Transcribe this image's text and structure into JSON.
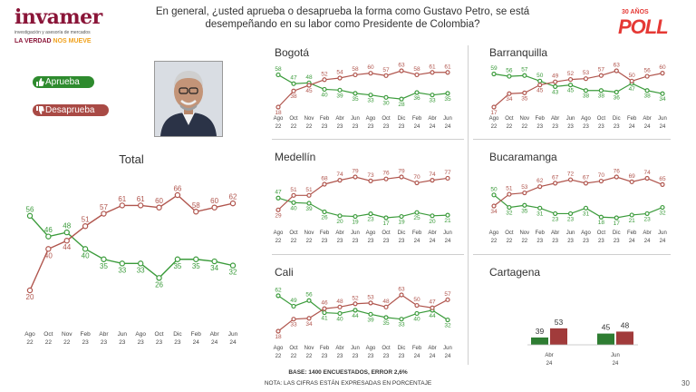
{
  "header": {
    "logo_text": "invamer",
    "logo_subtitle": "investigación y asesoría de mercados",
    "logo_tagline_a": "LA VERDAD ",
    "logo_tagline_b": "NOS MUEVE",
    "question": "En general, ¿usted aprueba o desaprueba la forma como Gustavo Petro, se está desempeñando en su labor como Presidente de Colombia?",
    "badge_top": "30 AÑOS",
    "badge_main": "POLL"
  },
  "legend": {
    "approve_label": "Aprueba",
    "disapprove_label": "Desaprueba",
    "approve_icon": "thumbs-up-icon",
    "disapprove_icon": "thumbs-down-icon"
  },
  "colors": {
    "approve": "#3b9b3b",
    "disapprove": "#b0554d",
    "approve_bar": "#2e7d32",
    "disapprove_bar": "#a13b3b"
  },
  "footer": {
    "base": "BASE: 1400 ENCUESTADOS, ERROR 2,6%",
    "note": "NOTA: LAS CIFRAS ESTÁN EXPRESADAS EN PORCENTAJE",
    "page": "30"
  },
  "chart_data": [
    {
      "id": "total",
      "type": "line",
      "title": "Total",
      "categories": [
        [
          "Ago",
          "22"
        ],
        [
          "Oct",
          "22"
        ],
        [
          "Nov",
          "22"
        ],
        [
          "Feb",
          "23"
        ],
        [
          "Abr",
          "23"
        ],
        [
          "Jun",
          "23"
        ],
        [
          "Ago",
          "23"
        ],
        [
          "Oct",
          "23"
        ],
        [
          "Dic",
          "23"
        ],
        [
          "Feb",
          "24"
        ],
        [
          "Abr",
          "24"
        ],
        [
          "Jun",
          "24"
        ]
      ],
      "series": [
        {
          "name": "Aprueba",
          "values": [
            56,
            46,
            48,
            40,
            35,
            33,
            33,
            26,
            35,
            35,
            34,
            32
          ]
        },
        {
          "name": "Desaprueba",
          "values": [
            20,
            40,
            44,
            51,
            57,
            61,
            61,
            60,
            66,
            58,
            60,
            62
          ]
        }
      ]
    },
    {
      "id": "bogota",
      "type": "line",
      "title": "Bogotá",
      "categories": [
        [
          "Ago",
          "22"
        ],
        [
          "Oct",
          "22"
        ],
        [
          "Nov",
          "22"
        ],
        [
          "Feb",
          "23"
        ],
        [
          "Abr",
          "23"
        ],
        [
          "Jun",
          "23"
        ],
        [
          "Ago",
          "23"
        ],
        [
          "Oct",
          "23"
        ],
        [
          "Dic",
          "23"
        ],
        [
          "Feb",
          "24"
        ],
        [
          "Abr",
          "24"
        ],
        [
          "Jun",
          "24"
        ]
      ],
      "series": [
        {
          "name": "Aprueba",
          "values": [
            58,
            47,
            48,
            40,
            39,
            35,
            33,
            30,
            28,
            36,
            33,
            35
          ]
        },
        {
          "name": "Desaprueba",
          "values": [
            18,
            38,
            45,
            52,
            54,
            58,
            60,
            57,
            63,
            58,
            61,
            61
          ]
        }
      ]
    },
    {
      "id": "barranquilla",
      "type": "line",
      "title": "Barranquilla",
      "categories": [
        [
          "Ago",
          "22"
        ],
        [
          "Oct",
          "22"
        ],
        [
          "Nov",
          "22"
        ],
        [
          "Feb",
          "23"
        ],
        [
          "Abr",
          "23"
        ],
        [
          "Jun",
          "23"
        ],
        [
          "Ago",
          "23"
        ],
        [
          "Oct",
          "23"
        ],
        [
          "Dic",
          "23"
        ],
        [
          "Feb",
          "24"
        ],
        [
          "Abr",
          "24"
        ],
        [
          "Jun",
          "24"
        ]
      ],
      "series": [
        {
          "name": "Aprueba",
          "values": [
            59,
            56,
            57,
            50,
            43,
            45,
            38,
            38,
            36,
            47,
            38,
            34
          ]
        },
        {
          "name": "Desaprueba",
          "values": [
            17,
            34,
            35,
            45,
            49,
            52,
            53,
            57,
            63,
            50,
            56,
            60
          ]
        }
      ]
    },
    {
      "id": "medellin",
      "type": "line",
      "title": "Medellín",
      "categories": [
        [
          "Ago",
          "22"
        ],
        [
          "Oct",
          "22"
        ],
        [
          "Nov",
          "22"
        ],
        [
          "Feb",
          "23"
        ],
        [
          "Abr",
          "23"
        ],
        [
          "Jun",
          "23"
        ],
        [
          "Ago",
          "23"
        ],
        [
          "Oct",
          "23"
        ],
        [
          "Dic",
          "23"
        ],
        [
          "Feb",
          "24"
        ],
        [
          "Abr",
          "24"
        ],
        [
          "Jun",
          "24"
        ]
      ],
      "series": [
        {
          "name": "Aprueba",
          "values": [
            47,
            40,
            39,
            26,
            20,
            19,
            23,
            17,
            19,
            25,
            20,
            21
          ]
        },
        {
          "name": "Desaprueba",
          "values": [
            29,
            51,
            51,
            68,
            74,
            79,
            73,
            76,
            79,
            70,
            74,
            77
          ]
        }
      ]
    },
    {
      "id": "bucaramanga",
      "type": "line",
      "title": "Bucaramanga",
      "categories": [
        [
          "Ago",
          "22"
        ],
        [
          "Oct",
          "22"
        ],
        [
          "Nov",
          "22"
        ],
        [
          "Feb",
          "23"
        ],
        [
          "Abr",
          "23"
        ],
        [
          "Jun",
          "23"
        ],
        [
          "Ago",
          "23"
        ],
        [
          "Oct",
          "23"
        ],
        [
          "Dic",
          "23"
        ],
        [
          "Feb",
          "24"
        ],
        [
          "Abr",
          "24"
        ],
        [
          "Jun",
          "24"
        ]
      ],
      "series": [
        {
          "name": "Aprueba",
          "values": [
            50,
            32,
            35,
            31,
            23,
            23,
            31,
            18,
            17,
            21,
            23,
            32
          ]
        },
        {
          "name": "Desaprueba",
          "values": [
            34,
            51,
            53,
            62,
            67,
            72,
            67,
            70,
            76,
            69,
            74,
            65
          ]
        }
      ]
    },
    {
      "id": "cali",
      "type": "line",
      "title": "Cali",
      "categories": [
        [
          "Ago",
          "22"
        ],
        [
          "Oct",
          "22"
        ],
        [
          "Nov",
          "22"
        ],
        [
          "Feb",
          "23"
        ],
        [
          "Abr",
          "23"
        ],
        [
          "Jun",
          "23"
        ],
        [
          "Ago",
          "23"
        ],
        [
          "Oct",
          "23"
        ],
        [
          "Dic",
          "23"
        ],
        [
          "Feb",
          "24"
        ],
        [
          "Abr",
          "24"
        ],
        [
          "Jun",
          "24"
        ]
      ],
      "series": [
        {
          "name": "Aprueba",
          "values": [
            62,
            49,
            56,
            41,
            40,
            44,
            39,
            35,
            33,
            40,
            44,
            32
          ]
        },
        {
          "name": "Desaprueba",
          "values": [
            18,
            33,
            34,
            46,
            48,
            52,
            53,
            48,
            63,
            50,
            47,
            57
          ]
        }
      ]
    },
    {
      "id": "cartagena",
      "type": "bar",
      "title": "Cartagena",
      "categories": [
        [
          "Abr",
          "24"
        ],
        [
          "Jun",
          "24"
        ]
      ],
      "series": [
        {
          "name": "Aprueba",
          "values": [
            39,
            45
          ]
        },
        {
          "name": "Desaprueba",
          "values": [
            53,
            48
          ]
        }
      ]
    }
  ]
}
